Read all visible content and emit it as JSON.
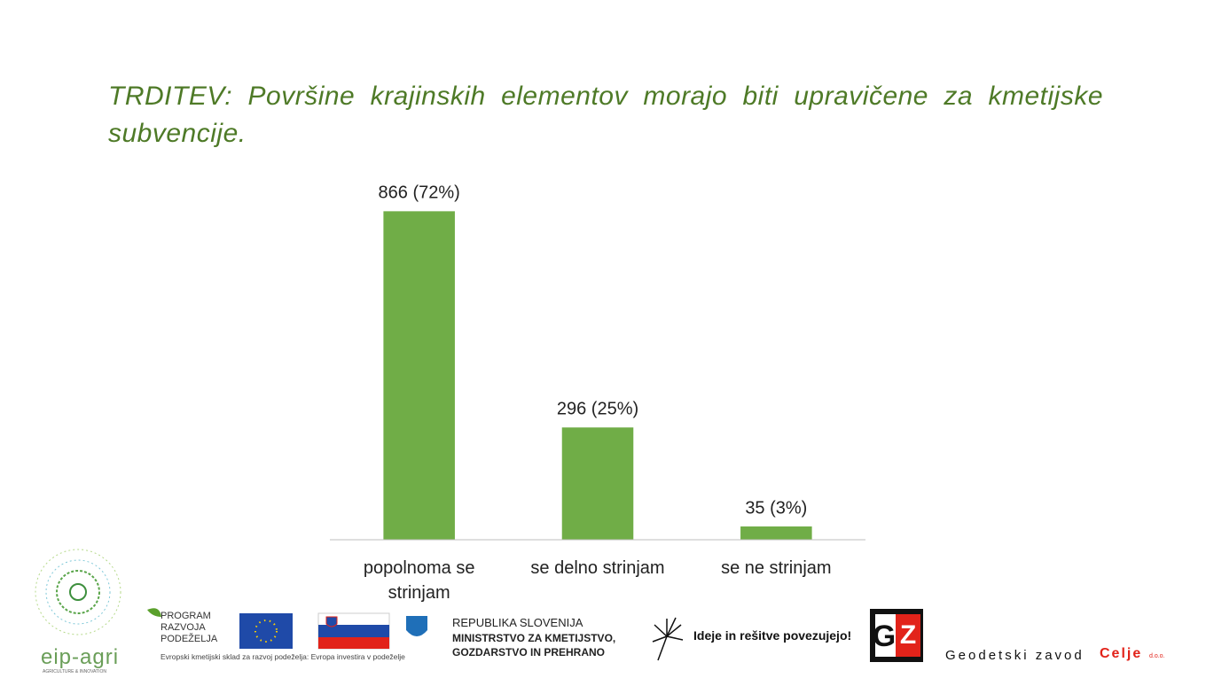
{
  "chart_data": {
    "type": "bar",
    "title": "TRDITEV: Površine krajinskih elementov morajo biti upravičene za kmetijske subvencije.",
    "categories": [
      "popolnoma se strinjam",
      "se delno strinjam",
      "se ne strinjam"
    ],
    "values": [
      866,
      296,
      35
    ],
    "value_labels": [
      "866 (72%)",
      "296 (25%)",
      "35 (3%)"
    ],
    "color": "#70ad47",
    "ylim": [
      0,
      1000
    ]
  },
  "footer": {
    "eip": "eip-agri",
    "eip_sub": "AGRICULTURE & INNOVATION",
    "program": [
      "PROGRAM",
      "RAZVOJA",
      "PODEŽELJA"
    ],
    "fund": "Evropski kmetijski sklad za razvoj podeželja: Evropa investira v podeželje",
    "republic": "REPUBLIKA SLOVENIJA",
    "ministry": [
      "MINISTRSTVO ZA KMETIJSTVO,",
      "GOZDARSTVO IN PREHRANO"
    ],
    "slogan": "Ideje in rešitve povezujejo!",
    "company": "Geodetski zavod",
    "city": "Celje",
    "suffix": "d.o.o."
  }
}
